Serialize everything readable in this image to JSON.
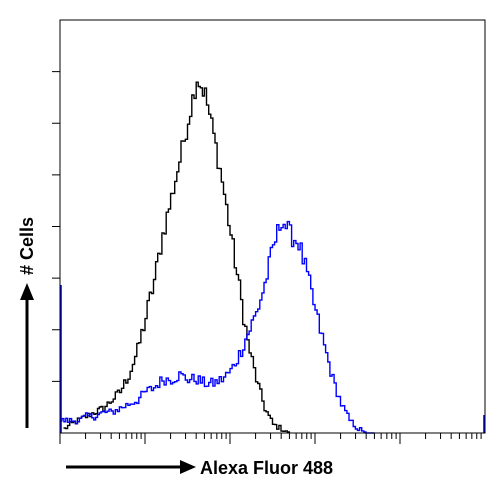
{
  "chart_data": {
    "type": "line",
    "xlabel": "Alexa Fluor 488",
    "ylabel": "# Cells",
    "x_scale": "log",
    "xlim": [
      1,
      100000
    ],
    "ylim": [
      0,
      100
    ],
    "grid": false,
    "series": [
      {
        "color": "#000000",
        "x": [
          1.1,
          1.3,
          1.6,
          2,
          2.5,
          3.2,
          4,
          5,
          6.3,
          8,
          10,
          12.6,
          15.8,
          20,
          25,
          31.6,
          40,
          50,
          63,
          79,
          100,
          126,
          158,
          200,
          251,
          316,
          398,
          500
        ],
        "y": [
          1,
          2,
          3,
          4,
          5,
          6,
          8,
          10,
          14,
          20,
          28,
          37,
          48,
          57,
          66,
          76,
          86,
          82,
          72,
          61,
          48,
          35,
          22,
          13,
          6,
          2,
          1,
          0
        ]
      },
      {
        "color": "#0000ff",
        "x": [
          1,
          1.3,
          1.6,
          2,
          2.5,
          3.2,
          4,
          5,
          6.3,
          8,
          10,
          12.6,
          15.8,
          20,
          25,
          31.6,
          40,
          50,
          63,
          79,
          100,
          126,
          158,
          200,
          251,
          316,
          398,
          500,
          631,
          794,
          1000,
          1259,
          1585,
          1995,
          2512,
          3162,
          3981,
          5012
        ],
        "y": [
          3,
          3,
          3,
          4,
          4,
          5,
          5,
          6,
          7,
          8,
          10,
          11,
          13,
          13,
          14,
          13,
          13,
          12,
          12,
          13,
          15,
          19,
          24,
          29,
          36,
          45,
          52,
          48,
          46,
          38,
          29,
          21,
          13,
          7,
          3,
          1,
          0,
          0
        ]
      }
    ]
  }
}
